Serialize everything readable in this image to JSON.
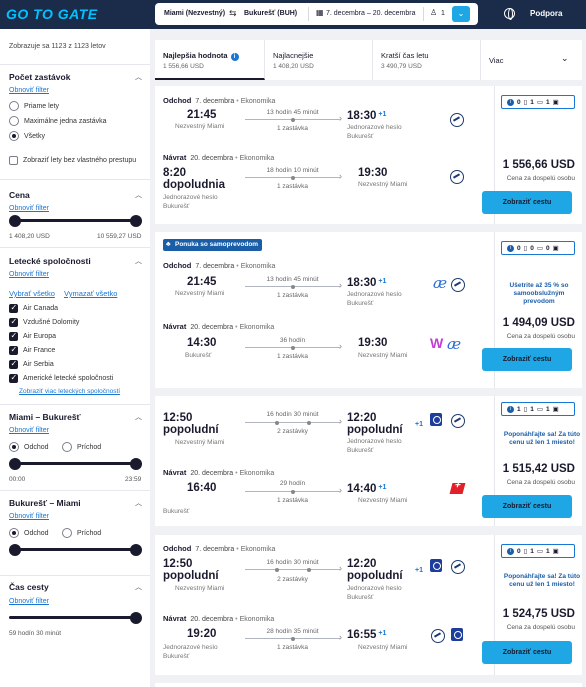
{
  "header": {
    "logo": "GO TO GATE",
    "from": "Miami (Nezvestný)",
    "to": "Bukurešť (BUH)",
    "dates": "7. decembra – 20. decembra",
    "passengers": "1",
    "support": "Podpora"
  },
  "sidebar": {
    "count_text": "Zobrazuje sa 1123 z 1123 letov",
    "stops": {
      "title": "Počet zastávok",
      "reset": "Obnoviť filter",
      "options": [
        "Priame lety",
        "Maximálne jedna zastávka",
        "Všetky"
      ],
      "selected": 2,
      "own_transfer": "Zobraziť lety bez vlastného prestupu"
    },
    "price": {
      "title": "Cena",
      "reset": "Obnoviť filter",
      "min": "1 408,20 USD",
      "max": "10 559,27 USD"
    },
    "airlines": {
      "title": "Letecké spoločnosti",
      "reset": "Obnoviť filter",
      "select_all": "Vybrať všetko",
      "clear_all": "Vymazať všetko",
      "items": [
        "Air Canada",
        "Vzdušné Dolomity",
        "Air Europa",
        "Air France",
        "Air Serbia",
        "Americké letecké spoločnosti"
      ],
      "more": "Zobraziť viac leteckých spoločností"
    },
    "outbound": {
      "title": "Miami – Bukurešť",
      "reset": "Obnoviť filter",
      "opt1": "Odchod",
      "opt2": "Príchod",
      "min": "00:00",
      "max": "23:59"
    },
    "inbound": {
      "title": "Bukurešť – Miami",
      "reset": "Obnoviť filter",
      "opt1": "Odchod",
      "opt2": "Príchod"
    },
    "travel_time": {
      "title": "Čas cesty",
      "reset": "Obnoviť filter",
      "value": "59 hodín 30 minút"
    }
  },
  "tabs": [
    {
      "title": "Najlepšia hodnota",
      "sub": "1 556,66 USD"
    },
    {
      "title": "Najlacnejšie",
      "sub": "1 408,20 USD"
    },
    {
      "title": "Kratší čas letu",
      "sub": "3 490,79 USD"
    },
    {
      "title": "Viac",
      "sub": ""
    }
  ],
  "common": {
    "out_dir": "Odchod",
    "ret_dir": "Návrat",
    "out_date": "7. decembra",
    "ret_date": "20. decembra",
    "cls": "Ekonomika",
    "miami": "Nezvestný Miami",
    "password": "Jednorazové heslo",
    "bucharest": "Bukurešť",
    "one_stop": "1 zastávka",
    "two_stops": "2 zastávky",
    "plus1": "+1",
    "per_adult": "Cena za dospelú osobu",
    "select": "Zobraziť cestu",
    "hurry": "Poponáhľajte sa! Za túto cenu už len 1 miesto!"
  },
  "cards": [
    {
      "out": {
        "dep": "21:45",
        "dur": "13 hodín 45 minút",
        "arr": "18:30"
      },
      "ret": {
        "dep": "8:20 dopoludnia",
        "dur": "18 hodín 10 minút",
        "arr": "19:30"
      },
      "bags": [
        "0",
        "1",
        "1"
      ],
      "price": "1 556,66 USD"
    },
    {
      "badge": "Ponuka so samoprevodom",
      "out": {
        "dep": "21:45",
        "dur": "13 hodín 45 minút",
        "arr": "18:30"
      },
      "ret": {
        "dep": "14:30",
        "dur": "36 hodín",
        "arr": "19:30"
      },
      "bags": [
        "0",
        "0",
        "0"
      ],
      "promo": "Ušetrite až 35 % so samoobslužným prevodom",
      "price": "1 494,09 USD"
    },
    {
      "out": {
        "dep": "12:50 popoludní",
        "dur": "16 hodín 30 minút",
        "arr": "12:20 popoludní"
      },
      "ret": {
        "dep": "16:40",
        "dur": "29 hodín",
        "arr": "14:40"
      },
      "bags": [
        "1",
        "1",
        "1"
      ],
      "price": "1 515,42 USD"
    },
    {
      "out": {
        "dep": "12:50 popoludní",
        "dur": "16 hodín 30 minút",
        "arr": "12:20 popoludní"
      },
      "ret": {
        "dep": "19:20",
        "dur": "28 hodín 35 minút",
        "arr": "16:55"
      },
      "bags": [
        "0",
        "1",
        "1"
      ],
      "price": "1 524,75 USD"
    }
  ]
}
